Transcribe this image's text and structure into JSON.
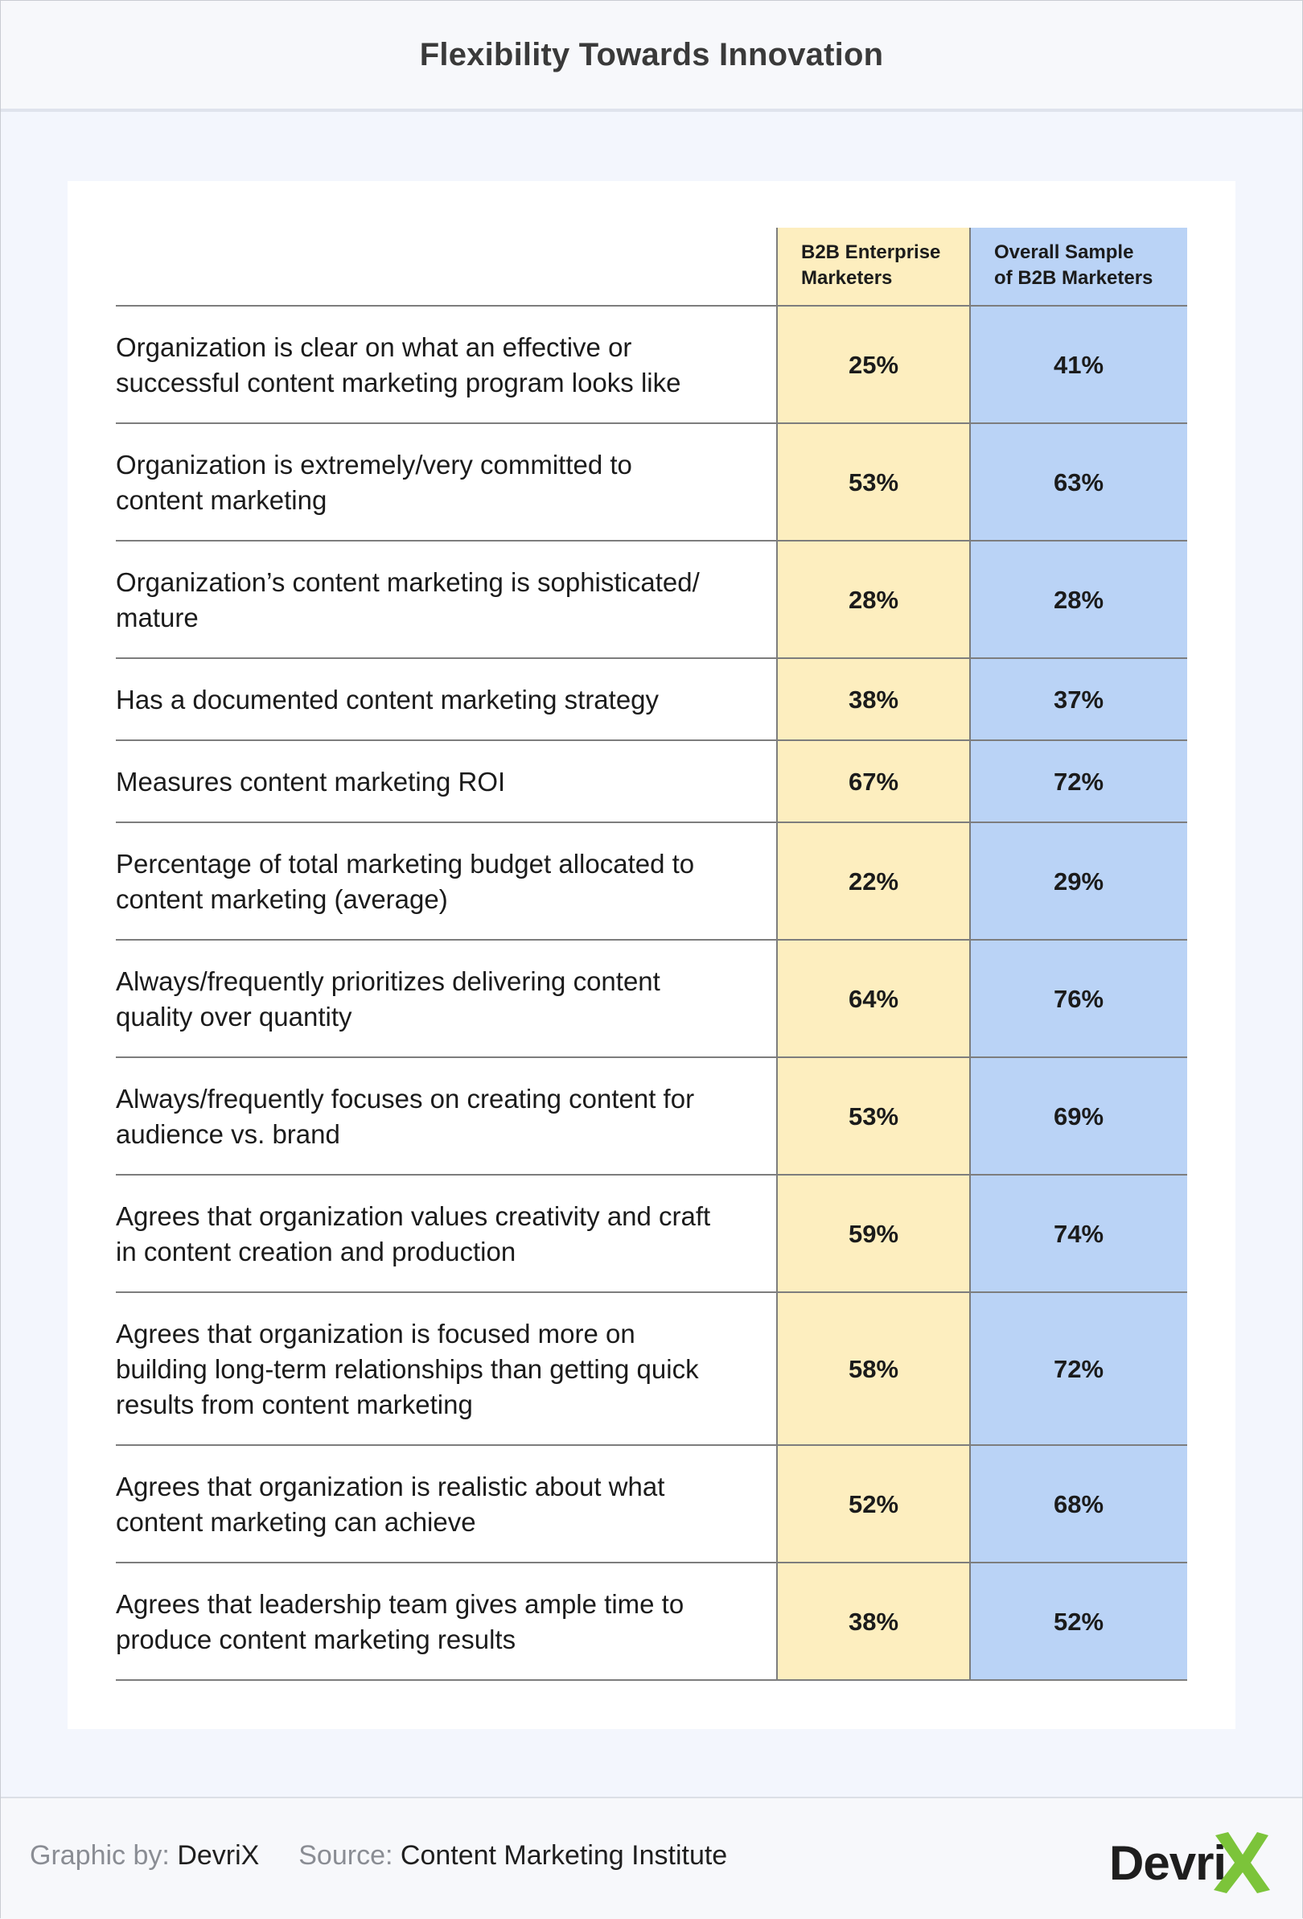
{
  "header": {
    "title": "Flexibility Towards Innovation"
  },
  "colors": {
    "col1": "#fdeebf",
    "col2": "#bad3f6",
    "brand_green": "#7cc43a"
  },
  "chart_data": {
    "type": "table",
    "title": "Flexibility Towards Innovation",
    "columns": [
      {
        "name": "B2B Enterprise Marketers",
        "lines": [
          "B2B Enterprise",
          "Marketers"
        ]
      },
      {
        "name": "Overall Sample of B2B Marketers",
        "lines": [
          "Overall Sample",
          "of B2B Marketers"
        ]
      }
    ],
    "rows": [
      {
        "lines": [
          "Organization is clear on what an effective or",
          "successful content marketing program looks like"
        ],
        "values": [
          "25%",
          "41%"
        ]
      },
      {
        "lines": [
          "Organization is extremely/very committed to",
          "content marketing"
        ],
        "values": [
          "53%",
          "63%"
        ]
      },
      {
        "lines": [
          "Organization’s content marketing is sophisticated/",
          "mature"
        ],
        "values": [
          "28%",
          "28%"
        ]
      },
      {
        "lines": [
          "Has a documented content marketing strategy"
        ],
        "values": [
          "38%",
          "37%"
        ]
      },
      {
        "lines": [
          "Measures content marketing ROI"
        ],
        "values": [
          "67%",
          "72%"
        ]
      },
      {
        "lines": [
          "Percentage of total marketing budget allocated to",
          "content marketing (average)"
        ],
        "values": [
          "22%",
          "29%"
        ]
      },
      {
        "lines": [
          "Always/frequently prioritizes delivering content",
          "quality over quantity"
        ],
        "values": [
          "64%",
          "76%"
        ]
      },
      {
        "lines": [
          "Always/frequently focuses on creating content for",
          "audience vs. brand"
        ],
        "values": [
          "53%",
          "69%"
        ]
      },
      {
        "lines": [
          "Agrees that organization values creativity and craft",
          "in content creation and production"
        ],
        "values": [
          "59%",
          "74%"
        ]
      },
      {
        "lines": [
          "Agrees that organization is focused more on",
          "building long-term relationships than getting quick",
          "results from content marketing"
        ],
        "values": [
          "58%",
          "72%"
        ]
      },
      {
        "lines": [
          "Agrees that organization is realistic about what",
          "content marketing can achieve"
        ],
        "values": [
          "52%",
          "68%"
        ]
      },
      {
        "lines": [
          "Agrees that leadership team gives ample time to",
          "produce content marketing results"
        ],
        "values": [
          "38%",
          "52%"
        ]
      }
    ]
  },
  "footer": {
    "graphic_by_label": "Graphic by:",
    "graphic_by_value": "DevriX",
    "source_label": "Source:",
    "source_value": "Content Marketing Institute",
    "logo_text": "Devri"
  }
}
